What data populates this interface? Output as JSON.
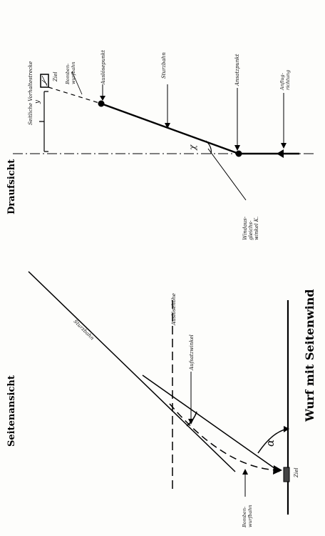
{
  "side_view": {
    "title": "Seitenansicht",
    "dive_path": "Sturzbahn",
    "release_height": "Auslösehöhe",
    "setting_angle": "Aufsatzwinkel",
    "alpha": "α",
    "bomb_trajectory_line1": "Bomben-",
    "bomb_trajectory_line2": "wurfbahn",
    "target": "Ziel"
  },
  "top_view": {
    "title": "Draufsicht",
    "lateral_lead": "Seitliche Vorhaltestrecke",
    "y_symbol": "y",
    "target": "Ziel",
    "bomb_trajectory_line1": "Bomben-",
    "bomb_trajectory_line2": "wurfbahn",
    "release_point": "Auslösepunkt",
    "dive_path": "Sturzbahn",
    "approach_point": "Ansatzpunkt",
    "approach_dir_line1": "Anflug-",
    "approach_dir_line2": "richtung",
    "kappa": "χ",
    "wind_angle_line1": "Windaus-",
    "wind_angle_line2": "gleichs-",
    "wind_angle_line3": "winkel K."
  },
  "caption": "Wurf mit Seitenwind"
}
